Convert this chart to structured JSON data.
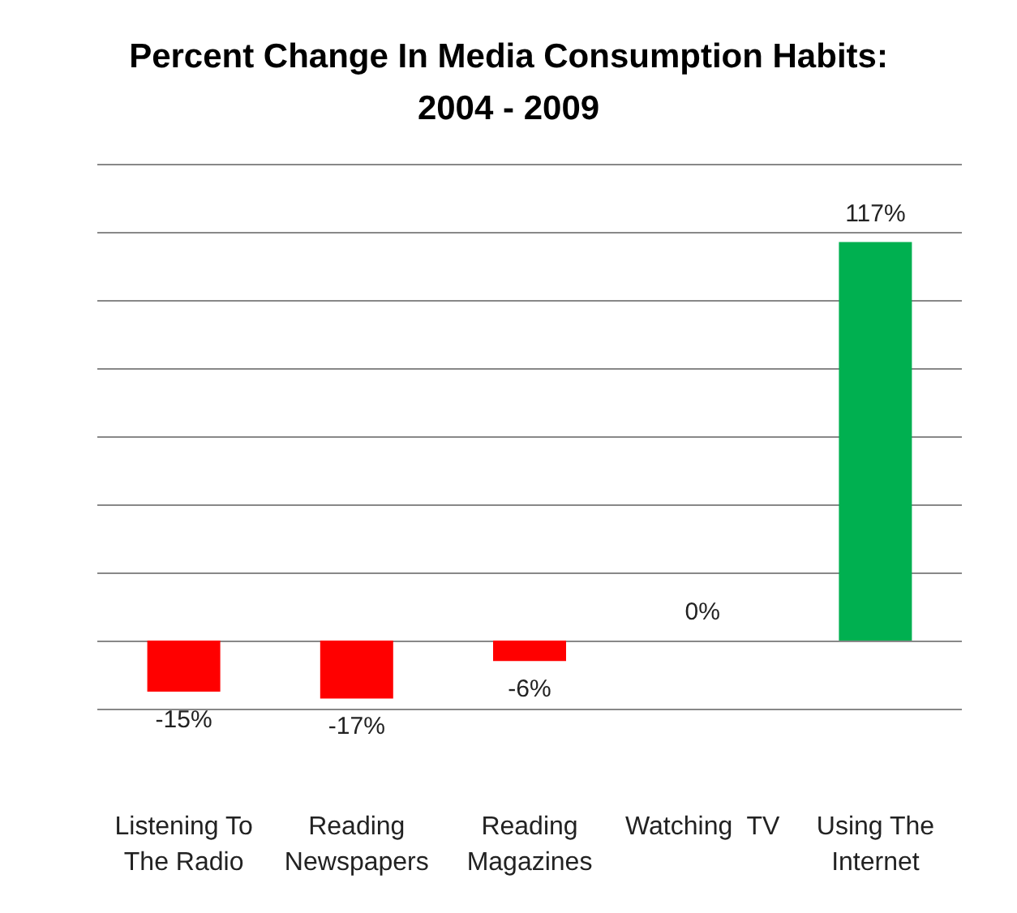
{
  "chart_data": {
    "type": "bar",
    "title": "Percent Change In Media Consumption Habits:\n2004 - 2009",
    "categories": [
      "Listening To\nThe Radio",
      "Reading\nNewspapers",
      "Reading\nMagazines",
      "Watching  TV",
      "Using The\nInternet"
    ],
    "values": [
      -15,
      -17,
      -6,
      0,
      117
    ],
    "colors": [
      "#ff0000",
      "#ff0000",
      "#ff0000",
      "#ff0000",
      "#00b050"
    ],
    "value_labels": [
      "-15%",
      "-17%",
      "-6%",
      "0%",
      "117%"
    ],
    "ylim": [
      -20,
      140
    ],
    "yticks": [
      -20,
      0,
      20,
      40,
      60,
      80,
      100,
      120,
      140
    ],
    "grid": "y",
    "tick_labels": "x"
  }
}
